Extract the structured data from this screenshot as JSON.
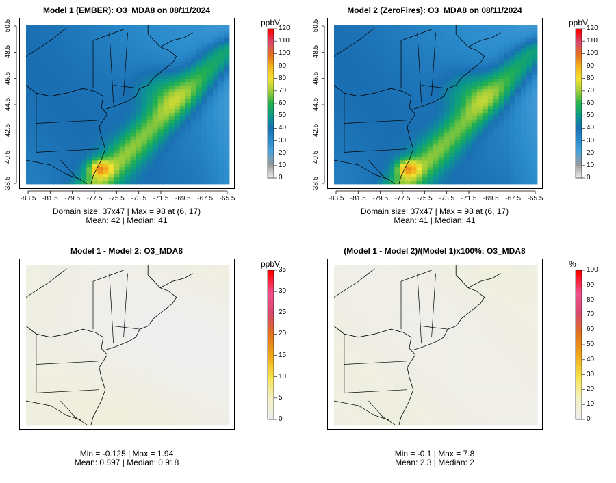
{
  "panels": [
    {
      "id": "p1",
      "title": "Model 1 (EMBER): O3_MDA8 on 08/11/2024",
      "stats_line1": "Domain size: 37x47 | Max = 98 at (6, 17)",
      "stats_line2": "Mean: 42 |  Median: 41",
      "colorbar_unit": "ppbV",
      "colorbar_ticks": [
        "0",
        "10",
        "20",
        "30",
        "40",
        "50",
        "60",
        "70",
        "80",
        "90",
        "100",
        "110",
        "120"
      ],
      "colorbar_max": 120,
      "field_type": "ozone",
      "show_axes": true
    },
    {
      "id": "p2",
      "title": "Model 2 (ZeroFires): O3_MDA8 on 08/11/2024",
      "stats_line1": "Domain size: 37x47 | Max = 98 at (6, 17)",
      "stats_line2": "Mean: 41 |  Median: 41",
      "colorbar_unit": "ppbV",
      "colorbar_ticks": [
        "0",
        "10",
        "20",
        "30",
        "40",
        "50",
        "60",
        "70",
        "80",
        "90",
        "100",
        "110",
        "120"
      ],
      "colorbar_max": 120,
      "field_type": "ozone",
      "show_axes": true
    },
    {
      "id": "p3",
      "title": "Model 1 - Model 2: O3_MDA8",
      "stats_line1": "Min = -0.125 | Max = 1.94",
      "stats_line2": "Mean: 0.897 |  Median: 0.918",
      "colorbar_unit": "ppbV",
      "colorbar_ticks": [
        "0",
        "5",
        "10",
        "15",
        "20",
        "25",
        "30",
        "35"
      ],
      "colorbar_max": 35,
      "field_type": "diff",
      "show_axes": false
    },
    {
      "id": "p4",
      "title": "(Model 1 - Model 2)/(Model 1)x100%: O3_MDA8",
      "stats_line1": "Min = -0.1 | Max = 7.8",
      "stats_line2": "Mean: 2.3 |  Median: 2",
      "colorbar_unit": "%",
      "colorbar_ticks": [
        "0",
        "10",
        "20",
        "30",
        "40",
        "50",
        "60",
        "70",
        "80",
        "90",
        "100"
      ],
      "colorbar_max": 100,
      "field_type": "pct",
      "show_axes": false
    }
  ],
  "x_axis_ticks": [
    "-83.5",
    "-81.5",
    "-79.5",
    "-77.5",
    "-75.5",
    "-73.5",
    "-71.5",
    "-69.5",
    "-67.5",
    "-65.5"
  ],
  "y_axis_ticks": [
    "38.5",
    "40.5",
    "42.5",
    "44.5",
    "46.5",
    "48.5",
    "50.5"
  ],
  "colors": {
    "ozone_scale": [
      "#e6e6e6",
      "#9a9a9a",
      "#4fa3d9",
      "#2b8ccc",
      "#1a6fb3",
      "#0a9a8a",
      "#22b050",
      "#9bcc3a",
      "#f2e432",
      "#f3b41c",
      "#e3701e",
      "#d84a6e",
      "#ff0000"
    ],
    "diff_scale": [
      "#eeeeee",
      "#f3f0c0",
      "#f6e34a",
      "#f0a81a",
      "#e2731c",
      "#d84a6e",
      "#f0508a",
      "#ff0000"
    ]
  }
}
